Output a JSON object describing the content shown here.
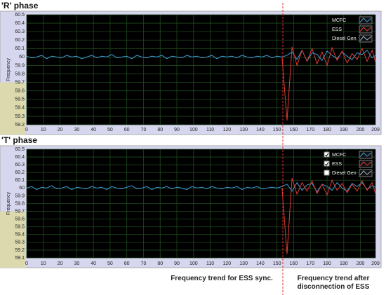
{
  "charts": [
    {
      "type": "line",
      "title": "'R' phase",
      "y_label": "Frequency",
      "x": [
        0,
        3,
        6,
        9,
        12,
        15,
        18,
        21,
        24,
        27,
        30,
        33,
        36,
        39,
        42,
        45,
        48,
        51,
        54,
        57,
        60,
        63,
        66,
        69,
        72,
        75,
        78,
        81,
        84,
        87,
        90,
        93,
        96,
        99,
        102,
        105,
        108,
        111,
        114,
        117,
        120,
        123,
        126,
        129,
        132,
        135,
        138,
        141,
        144,
        147,
        150,
        153,
        156,
        159,
        162,
        165,
        168,
        171,
        174,
        177,
        180,
        183,
        186,
        189,
        192,
        195,
        198,
        201,
        204,
        207,
        209
      ],
      "series": [
        {
          "name": "MCFC",
          "color": "#3c9ad6",
          "values": [
            60.01,
            59.99,
            60.0,
            60.02,
            59.98,
            60.01,
            60.0,
            59.99,
            60.02,
            60.0,
            60.01,
            59.98,
            60.0,
            60.02,
            59.99,
            60.01,
            60.0,
            60.03,
            59.99,
            60.0,
            60.01,
            59.98,
            60.02,
            60.0,
            59.99,
            60.01,
            60.0,
            60.02,
            59.98,
            60.01,
            60.0,
            59.99,
            60.02,
            60.0,
            60.01,
            59.99,
            60.0,
            60.02,
            59.98,
            60.01,
            60.0,
            60.01,
            59.99,
            60.02,
            60.0,
            59.99,
            60.01,
            60.0,
            60.02,
            59.99,
            60.01,
            60.0,
            60.02,
            60.06,
            59.97,
            60.08,
            59.95,
            60.05,
            60.03,
            59.96,
            60.07,
            60.02,
            59.98,
            60.06,
            60.01,
            59.97,
            60.05,
            60.03,
            60.08,
            59.99,
            60.02
          ]
        },
        {
          "name": "ESS",
          "color": "#e23a32",
          "values": [
            null,
            null,
            null,
            null,
            null,
            null,
            null,
            null,
            null,
            null,
            null,
            null,
            null,
            null,
            null,
            null,
            null,
            null,
            null,
            null,
            null,
            null,
            null,
            null,
            null,
            null,
            null,
            null,
            null,
            null,
            null,
            null,
            null,
            null,
            null,
            null,
            null,
            null,
            null,
            null,
            null,
            null,
            null,
            null,
            null,
            null,
            null,
            null,
            null,
            null,
            null,
            60.0,
            59.25,
            60.12,
            59.9,
            60.08,
            59.95,
            60.1,
            59.92,
            60.06,
            59.9,
            60.11,
            59.96,
            60.07,
            59.93,
            60.04,
            59.97,
            60.1,
            59.95,
            60.08,
            59.94
          ]
        },
        {
          "name": "Diesel Gen",
          "color": "#9cb4cc",
          "values": [
            null,
            null,
            null,
            null,
            null,
            null,
            null,
            null,
            null,
            null,
            null,
            null,
            null,
            null,
            null,
            null,
            null,
            null,
            null,
            null,
            null,
            null,
            null,
            null,
            null,
            null,
            null,
            null,
            null,
            null,
            null,
            null,
            null,
            null,
            null,
            null,
            null,
            null,
            null,
            null,
            null,
            null,
            null,
            null,
            null,
            null,
            null,
            null,
            null,
            null,
            null,
            null,
            null,
            null,
            null,
            null,
            null,
            null,
            null,
            null,
            null,
            null,
            null,
            null,
            null,
            null,
            null,
            null,
            null,
            null,
            null
          ]
        }
      ],
      "xlim": [
        0,
        209
      ],
      "xticks": [
        0,
        10,
        20,
        30,
        40,
        50,
        60,
        70,
        80,
        90,
        100,
        110,
        120,
        130,
        140,
        150,
        160,
        170,
        180,
        190,
        200,
        209
      ],
      "ylim": [
        59.2,
        60.5
      ],
      "yticks": [
        59.2,
        59.3,
        59.4,
        59.5,
        59.6,
        59.7,
        59.8,
        59.9,
        60,
        60.1,
        60.2,
        60.3,
        60.4,
        60.5
      ],
      "grid": true
    },
    {
      "type": "line",
      "title": "'T' phase",
      "y_label": "Frequency",
      "x": [
        0,
        3,
        6,
        9,
        12,
        15,
        18,
        21,
        24,
        27,
        30,
        33,
        36,
        39,
        42,
        45,
        48,
        51,
        54,
        57,
        60,
        63,
        66,
        69,
        72,
        75,
        78,
        81,
        84,
        87,
        90,
        93,
        96,
        99,
        102,
        105,
        108,
        111,
        114,
        117,
        120,
        123,
        126,
        129,
        132,
        135,
        138,
        141,
        144,
        147,
        150,
        153,
        156,
        159,
        162,
        165,
        168,
        171,
        174,
        177,
        180,
        183,
        186,
        189,
        192,
        195,
        198,
        201,
        204,
        207,
        209
      ],
      "series": [
        {
          "name": "MCFC",
          "color": "#3c9ad6",
          "checked": true,
          "values": [
            60.0,
            60.02,
            59.98,
            60.01,
            60.0,
            60.03,
            59.99,
            60.0,
            60.02,
            59.98,
            60.01,
            60.0,
            59.99,
            60.02,
            60.0,
            60.01,
            59.98,
            60.02,
            60.0,
            59.99,
            60.01,
            60.03,
            59.99,
            60.0,
            60.02,
            59.98,
            60.01,
            60.0,
            60.02,
            59.99,
            60.01,
            60.0,
            59.98,
            60.02,
            60.0,
            60.01,
            59.99,
            60.02,
            60.0,
            59.99,
            60.01,
            60.0,
            60.02,
            59.98,
            60.01,
            60.0,
            60.02,
            59.99,
            60.0,
            60.01,
            60.0,
            60.02,
            60.05,
            59.96,
            60.07,
            59.97,
            60.04,
            60.06,
            59.95,
            60.05,
            60.02,
            59.97,
            60.07,
            60.0,
            59.96,
            60.06,
            60.02,
            60.07,
            59.98,
            60.03,
            60.01
          ]
        },
        {
          "name": "ESS",
          "color": "#e23a32",
          "checked": true,
          "values": [
            null,
            null,
            null,
            null,
            null,
            null,
            null,
            null,
            null,
            null,
            null,
            null,
            null,
            null,
            null,
            null,
            null,
            null,
            null,
            null,
            null,
            null,
            null,
            null,
            null,
            null,
            null,
            null,
            null,
            null,
            null,
            null,
            null,
            null,
            null,
            null,
            null,
            null,
            null,
            null,
            null,
            null,
            null,
            null,
            null,
            null,
            null,
            null,
            null,
            null,
            null,
            60.0,
            59.15,
            60.13,
            59.92,
            60.07,
            59.96,
            60.09,
            59.93,
            60.05,
            59.91,
            60.1,
            59.97,
            60.06,
            59.94,
            60.05,
            59.96,
            60.09,
            59.97,
            60.07,
            59.93
          ]
        },
        {
          "name": "Diesel Gen",
          "color": "#9cb4cc",
          "checked": false,
          "values": [
            null,
            null,
            null,
            null,
            null,
            null,
            null,
            null,
            null,
            null,
            null,
            null,
            null,
            null,
            null,
            null,
            null,
            null,
            null,
            null,
            null,
            null,
            null,
            null,
            null,
            null,
            null,
            null,
            null,
            null,
            null,
            null,
            null,
            null,
            null,
            null,
            null,
            null,
            null,
            null,
            null,
            null,
            null,
            null,
            null,
            null,
            null,
            null,
            null,
            null,
            null,
            null,
            null,
            null,
            null,
            null,
            null,
            null,
            null,
            null,
            null,
            null,
            null,
            null,
            null,
            null,
            null,
            null,
            null,
            null,
            null
          ]
        }
      ],
      "xlim": [
        0,
        209
      ],
      "xticks": [
        0,
        10,
        20,
        30,
        40,
        50,
        60,
        70,
        80,
        90,
        100,
        110,
        120,
        130,
        140,
        150,
        160,
        170,
        180,
        190,
        200,
        209
      ],
      "ylim": [
        59.1,
        60.5
      ],
      "yticks": [
        59.1,
        59.2,
        59.3,
        59.4,
        59.5,
        59.6,
        59.7,
        59.8,
        59.9,
        60,
        60.1,
        60.2,
        60.3,
        60.4,
        60.5
      ],
      "grid": true
    }
  ],
  "annotations": [
    "Frequency trend for ESS sync.",
    "Frequency trend after disconnection of ESS"
  ]
}
